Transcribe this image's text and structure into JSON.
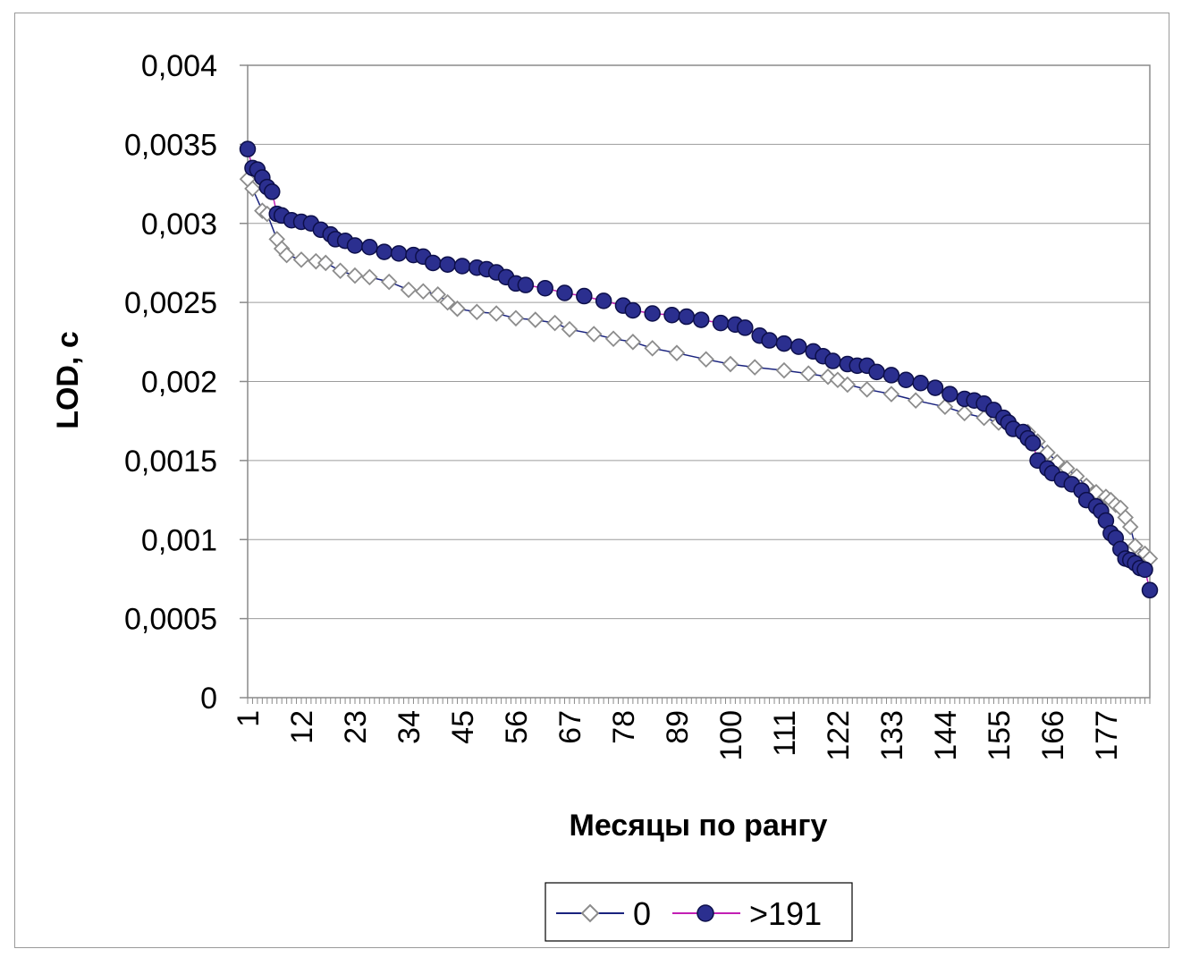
{
  "chart_data": {
    "type": "line",
    "title": "",
    "xlabel": "Месяцы по рангу",
    "ylabel": "LOD, c",
    "ylim": [
      0,
      0.004
    ],
    "y_ticks": [
      "0",
      "0,0005",
      "0,001",
      "0,0015",
      "0,002",
      "0,0025",
      "0,003",
      "0,0035",
      "0,004"
    ],
    "y_tick_values": [
      0,
      0.0005,
      0.001,
      0.0015,
      0.002,
      0.0025,
      0.003,
      0.0035,
      0.004
    ],
    "x_ticks": [
      "1",
      "12",
      "23",
      "34",
      "45",
      "56",
      "67",
      "78",
      "89",
      "100",
      "111",
      "122",
      "133",
      "144",
      "155",
      "166",
      "177"
    ],
    "x_tick_values": [
      1,
      12,
      23,
      34,
      45,
      56,
      67,
      78,
      89,
      100,
      111,
      122,
      133,
      144,
      155,
      166,
      177
    ],
    "x_range": [
      1,
      186
    ],
    "grid": "horizontal",
    "legend_position": "bottom",
    "series": [
      {
        "name": "0",
        "marker": "diamond-open",
        "marker_color": "#8c8c8c",
        "line_color": "#1a237e",
        "points": [
          [
            1,
            0.00328
          ],
          [
            2,
            0.00322
          ],
          [
            4,
            0.00308
          ],
          [
            5,
            0.00306
          ],
          [
            7,
            0.0029
          ],
          [
            8,
            0.00284
          ],
          [
            9,
            0.0028
          ],
          [
            12,
            0.00277
          ],
          [
            15,
            0.00276
          ],
          [
            17,
            0.00275
          ],
          [
            20,
            0.0027
          ],
          [
            23,
            0.00267
          ],
          [
            26,
            0.00266
          ],
          [
            30,
            0.00263
          ],
          [
            34,
            0.00258
          ],
          [
            37,
            0.00257
          ],
          [
            40,
            0.00255
          ],
          [
            42,
            0.0025
          ],
          [
            44,
            0.00246
          ],
          [
            48,
            0.00244
          ],
          [
            52,
            0.00243
          ],
          [
            56,
            0.0024
          ],
          [
            60,
            0.00239
          ],
          [
            64,
            0.00237
          ],
          [
            67,
            0.00233
          ],
          [
            72,
            0.0023
          ],
          [
            76,
            0.00227
          ],
          [
            80,
            0.00225
          ],
          [
            84,
            0.00221
          ],
          [
            89,
            0.00218
          ],
          [
            95,
            0.00214
          ],
          [
            100,
            0.00211
          ],
          [
            105,
            0.00209
          ],
          [
            111,
            0.00207
          ],
          [
            116,
            0.00205
          ],
          [
            120,
            0.00203
          ],
          [
            122,
            0.00201
          ],
          [
            124,
            0.00198
          ],
          [
            128,
            0.00195
          ],
          [
            133,
            0.00192
          ],
          [
            138,
            0.00188
          ],
          [
            144,
            0.00184
          ],
          [
            148,
            0.0018
          ],
          [
            152,
            0.00177
          ],
          [
            155,
            0.00174
          ],
          [
            158,
            0.00171
          ],
          [
            161,
            0.00168
          ],
          [
            163,
            0.00162
          ],
          [
            165,
            0.00155
          ],
          [
            167,
            0.00149
          ],
          [
            169,
            0.00145
          ],
          [
            171,
            0.0014
          ],
          [
            173,
            0.00134
          ],
          [
            175,
            0.0013
          ],
          [
            177,
            0.00127
          ],
          [
            178,
            0.00125
          ],
          [
            179,
            0.00122
          ],
          [
            180,
            0.0012
          ],
          [
            181,
            0.00114
          ],
          [
            182,
            0.00108
          ],
          [
            183,
            0.00096
          ],
          [
            185,
            0.00091
          ],
          [
            186,
            0.00088
          ]
        ]
      },
      {
        "name": ">191",
        "marker": "circle-filled",
        "marker_color": "#2b2f8f",
        "line_color": "#c21fb4",
        "points": [
          [
            1,
            0.00347
          ],
          [
            2,
            0.00335
          ],
          [
            3,
            0.00334
          ],
          [
            4,
            0.00329
          ],
          [
            5,
            0.00323
          ],
          [
            6,
            0.0032
          ],
          [
            7,
            0.00306
          ],
          [
            8,
            0.00305
          ],
          [
            10,
            0.00302
          ],
          [
            12,
            0.00301
          ],
          [
            14,
            0.003
          ],
          [
            16,
            0.00296
          ],
          [
            18,
            0.00293
          ],
          [
            19,
            0.0029
          ],
          [
            21,
            0.00289
          ],
          [
            23,
            0.00286
          ],
          [
            26,
            0.00285
          ],
          [
            29,
            0.00282
          ],
          [
            32,
            0.00281
          ],
          [
            35,
            0.0028
          ],
          [
            37,
            0.00279
          ],
          [
            39,
            0.00275
          ],
          [
            42,
            0.00274
          ],
          [
            45,
            0.00273
          ],
          [
            48,
            0.00272
          ],
          [
            50,
            0.00271
          ],
          [
            52,
            0.00269
          ],
          [
            54,
            0.00266
          ],
          [
            56,
            0.00262
          ],
          [
            58,
            0.00261
          ],
          [
            62,
            0.00259
          ],
          [
            66,
            0.00256
          ],
          [
            70,
            0.00254
          ],
          [
            74,
            0.00251
          ],
          [
            78,
            0.00248
          ],
          [
            80,
            0.00245
          ],
          [
            84,
            0.00243
          ],
          [
            88,
            0.00242
          ],
          [
            91,
            0.00241
          ],
          [
            94,
            0.00239
          ],
          [
            98,
            0.00237
          ],
          [
            101,
            0.00236
          ],
          [
            103,
            0.00234
          ],
          [
            106,
            0.00229
          ],
          [
            108,
            0.00226
          ],
          [
            111,
            0.00224
          ],
          [
            114,
            0.00222
          ],
          [
            117,
            0.00219
          ],
          [
            119,
            0.00216
          ],
          [
            121,
            0.00213
          ],
          [
            124,
            0.00211
          ],
          [
            126,
            0.0021
          ],
          [
            128,
            0.0021
          ],
          [
            130,
            0.00206
          ],
          [
            133,
            0.00204
          ],
          [
            136,
            0.00201
          ],
          [
            139,
            0.00199
          ],
          [
            142,
            0.00196
          ],
          [
            145,
            0.00192
          ],
          [
            148,
            0.00189
          ],
          [
            150,
            0.00188
          ],
          [
            152,
            0.00186
          ],
          [
            154,
            0.00182
          ],
          [
            156,
            0.00177
          ],
          [
            157,
            0.00174
          ],
          [
            158,
            0.0017
          ],
          [
            160,
            0.00168
          ],
          [
            161,
            0.00164
          ],
          [
            162,
            0.00161
          ],
          [
            163,
            0.0015
          ],
          [
            165,
            0.00145
          ],
          [
            166,
            0.00142
          ],
          [
            168,
            0.00138
          ],
          [
            170,
            0.00135
          ],
          [
            172,
            0.00131
          ],
          [
            173,
            0.00125
          ],
          [
            175,
            0.00121
          ],
          [
            176,
            0.00118
          ],
          [
            177,
            0.00112
          ],
          [
            178,
            0.00104
          ],
          [
            179,
            0.00101
          ],
          [
            180,
            0.00094
          ],
          [
            181,
            0.00088
          ],
          [
            182,
            0.00087
          ],
          [
            183,
            0.00085
          ],
          [
            184,
            0.00082
          ],
          [
            185,
            0.00081
          ],
          [
            186,
            0.00068
          ]
        ]
      }
    ]
  },
  "legend": {
    "items": [
      {
        "label": "0"
      },
      {
        "label": ">191"
      }
    ]
  }
}
